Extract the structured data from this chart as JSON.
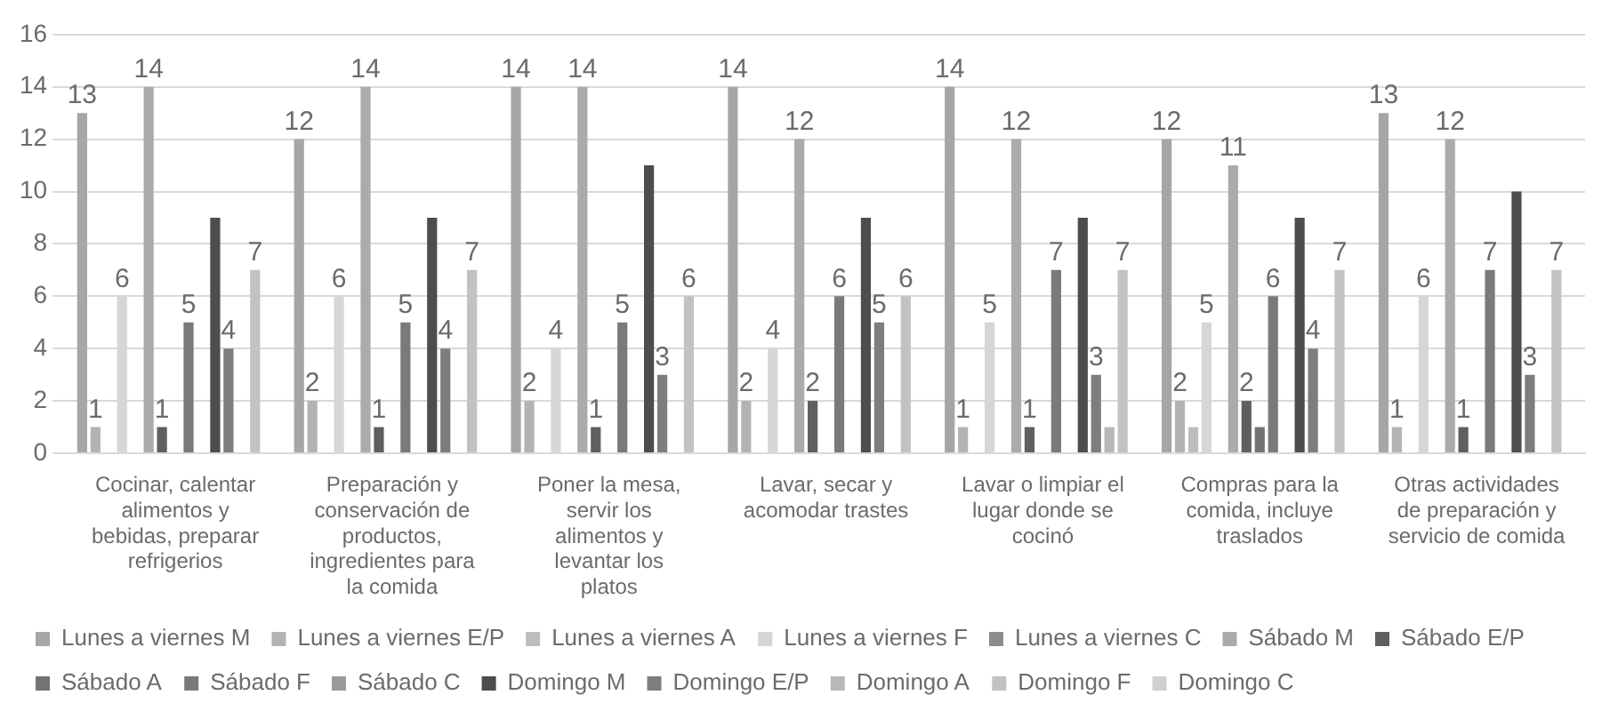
{
  "chart_data": {
    "type": "bar",
    "categories": [
      "Cocinar, calentar alimentos y bebidas, preparar refrigerios",
      "Preparación y conservación de productos, ingredientes para la comida",
      "Poner la mesa, servir los alimentos y levantar los platos",
      "Lavar, secar y acomodar trastes",
      "Lavar o limpiar el lugar donde se cocinó",
      "Compras para la comida, incluye traslados",
      "Otras actividades de preparación y servicio de comida"
    ],
    "series": [
      {
        "name": "Lunes a viernes M",
        "color": "#a6a6a6",
        "values": [
          13,
          12,
          14,
          14,
          14,
          12,
          13
        ],
        "value_labels": [
          "13",
          "12",
          "14",
          "14",
          "14",
          "12",
          "13"
        ]
      },
      {
        "name": "Lunes a viernes E/P",
        "color": "#b3b3b3",
        "values": [
          1,
          2,
          2,
          2,
          1,
          2,
          1
        ],
        "value_labels": [
          "1",
          "2",
          "2",
          "2",
          "1",
          "2",
          "1"
        ]
      },
      {
        "name": "Lunes a viernes A",
        "color": "#bdbdbd",
        "values": [
          null,
          null,
          null,
          null,
          null,
          1,
          null
        ],
        "value_labels": [
          null,
          null,
          null,
          null,
          null,
          null,
          null
        ]
      },
      {
        "name": "Lunes a viernes F",
        "color": "#d6d6d6",
        "values": [
          6,
          6,
          4,
          4,
          5,
          5,
          6
        ],
        "value_labels": [
          "6",
          "6",
          "4",
          "4",
          "5",
          "5",
          "6"
        ]
      },
      {
        "name": "Lunes a viernes C",
        "color": "#8c8c8c",
        "values": [
          null,
          null,
          null,
          null,
          null,
          null,
          null
        ],
        "value_labels": [
          null,
          null,
          null,
          null,
          null,
          null,
          null
        ]
      },
      {
        "name": "Sábado M",
        "color": "#ababab",
        "values": [
          14,
          14,
          14,
          12,
          12,
          11,
          12
        ],
        "value_labels": [
          "14",
          "14",
          "14",
          "12",
          "12",
          "11",
          "12"
        ]
      },
      {
        "name": "Sábado E/P",
        "color": "#5f5f5f",
        "values": [
          1,
          1,
          1,
          2,
          1,
          2,
          1
        ],
        "value_labels": [
          "1",
          "1",
          "1",
          "2",
          "1",
          "2",
          "1"
        ]
      },
      {
        "name": "Sábado A",
        "color": "#737373",
        "values": [
          null,
          null,
          null,
          null,
          null,
          1,
          null
        ],
        "value_labels": [
          null,
          null,
          null,
          null,
          null,
          null,
          null
        ]
      },
      {
        "name": "Sábado F",
        "color": "#7a7a7a",
        "values": [
          5,
          5,
          5,
          6,
          7,
          6,
          7
        ],
        "value_labels": [
          "5",
          "5",
          "5",
          "6",
          "7",
          "6",
          "7"
        ]
      },
      {
        "name": "Sábado C",
        "color": "#999999",
        "values": [
          null,
          null,
          null,
          null,
          null,
          null,
          null
        ],
        "value_labels": [
          null,
          null,
          null,
          null,
          null,
          null,
          null
        ]
      },
      {
        "name": "Domingo M",
        "color": "#4d4d4d",
        "values": [
          9,
          9,
          11,
          9,
          9,
          9,
          10
        ],
        "value_labels": [
          null,
          null,
          null,
          null,
          null,
          null,
          null
        ]
      },
      {
        "name": "Domingo E/P",
        "color": "#7d7d7d",
        "values": [
          4,
          4,
          3,
          5,
          3,
          4,
          3
        ],
        "value_labels": [
          "4",
          "4",
          "3",
          "5",
          "3",
          "4",
          "3"
        ]
      },
      {
        "name": "Domingo A",
        "color": "#b8b8b8",
        "values": [
          null,
          null,
          null,
          null,
          1,
          null,
          null
        ],
        "value_labels": [
          null,
          null,
          null,
          null,
          null,
          null,
          null
        ]
      },
      {
        "name": "Domingo F",
        "color": "#c2c2c2",
        "values": [
          7,
          7,
          6,
          6,
          7,
          7,
          7
        ],
        "value_labels": [
          "7",
          "7",
          "6",
          "6",
          "7",
          "7",
          "7"
        ]
      },
      {
        "name": "Domingo C",
        "color": "#d0d0d0",
        "values": [
          null,
          null,
          null,
          null,
          null,
          null,
          null
        ],
        "value_labels": [
          null,
          null,
          null,
          null,
          null,
          null,
          null
        ]
      }
    ],
    "ylim": [
      0,
      16
    ],
    "yticks": [
      0,
      2,
      4,
      6,
      8,
      10,
      12,
      14,
      16
    ],
    "grid": "y",
    "legend": "bottom"
  }
}
